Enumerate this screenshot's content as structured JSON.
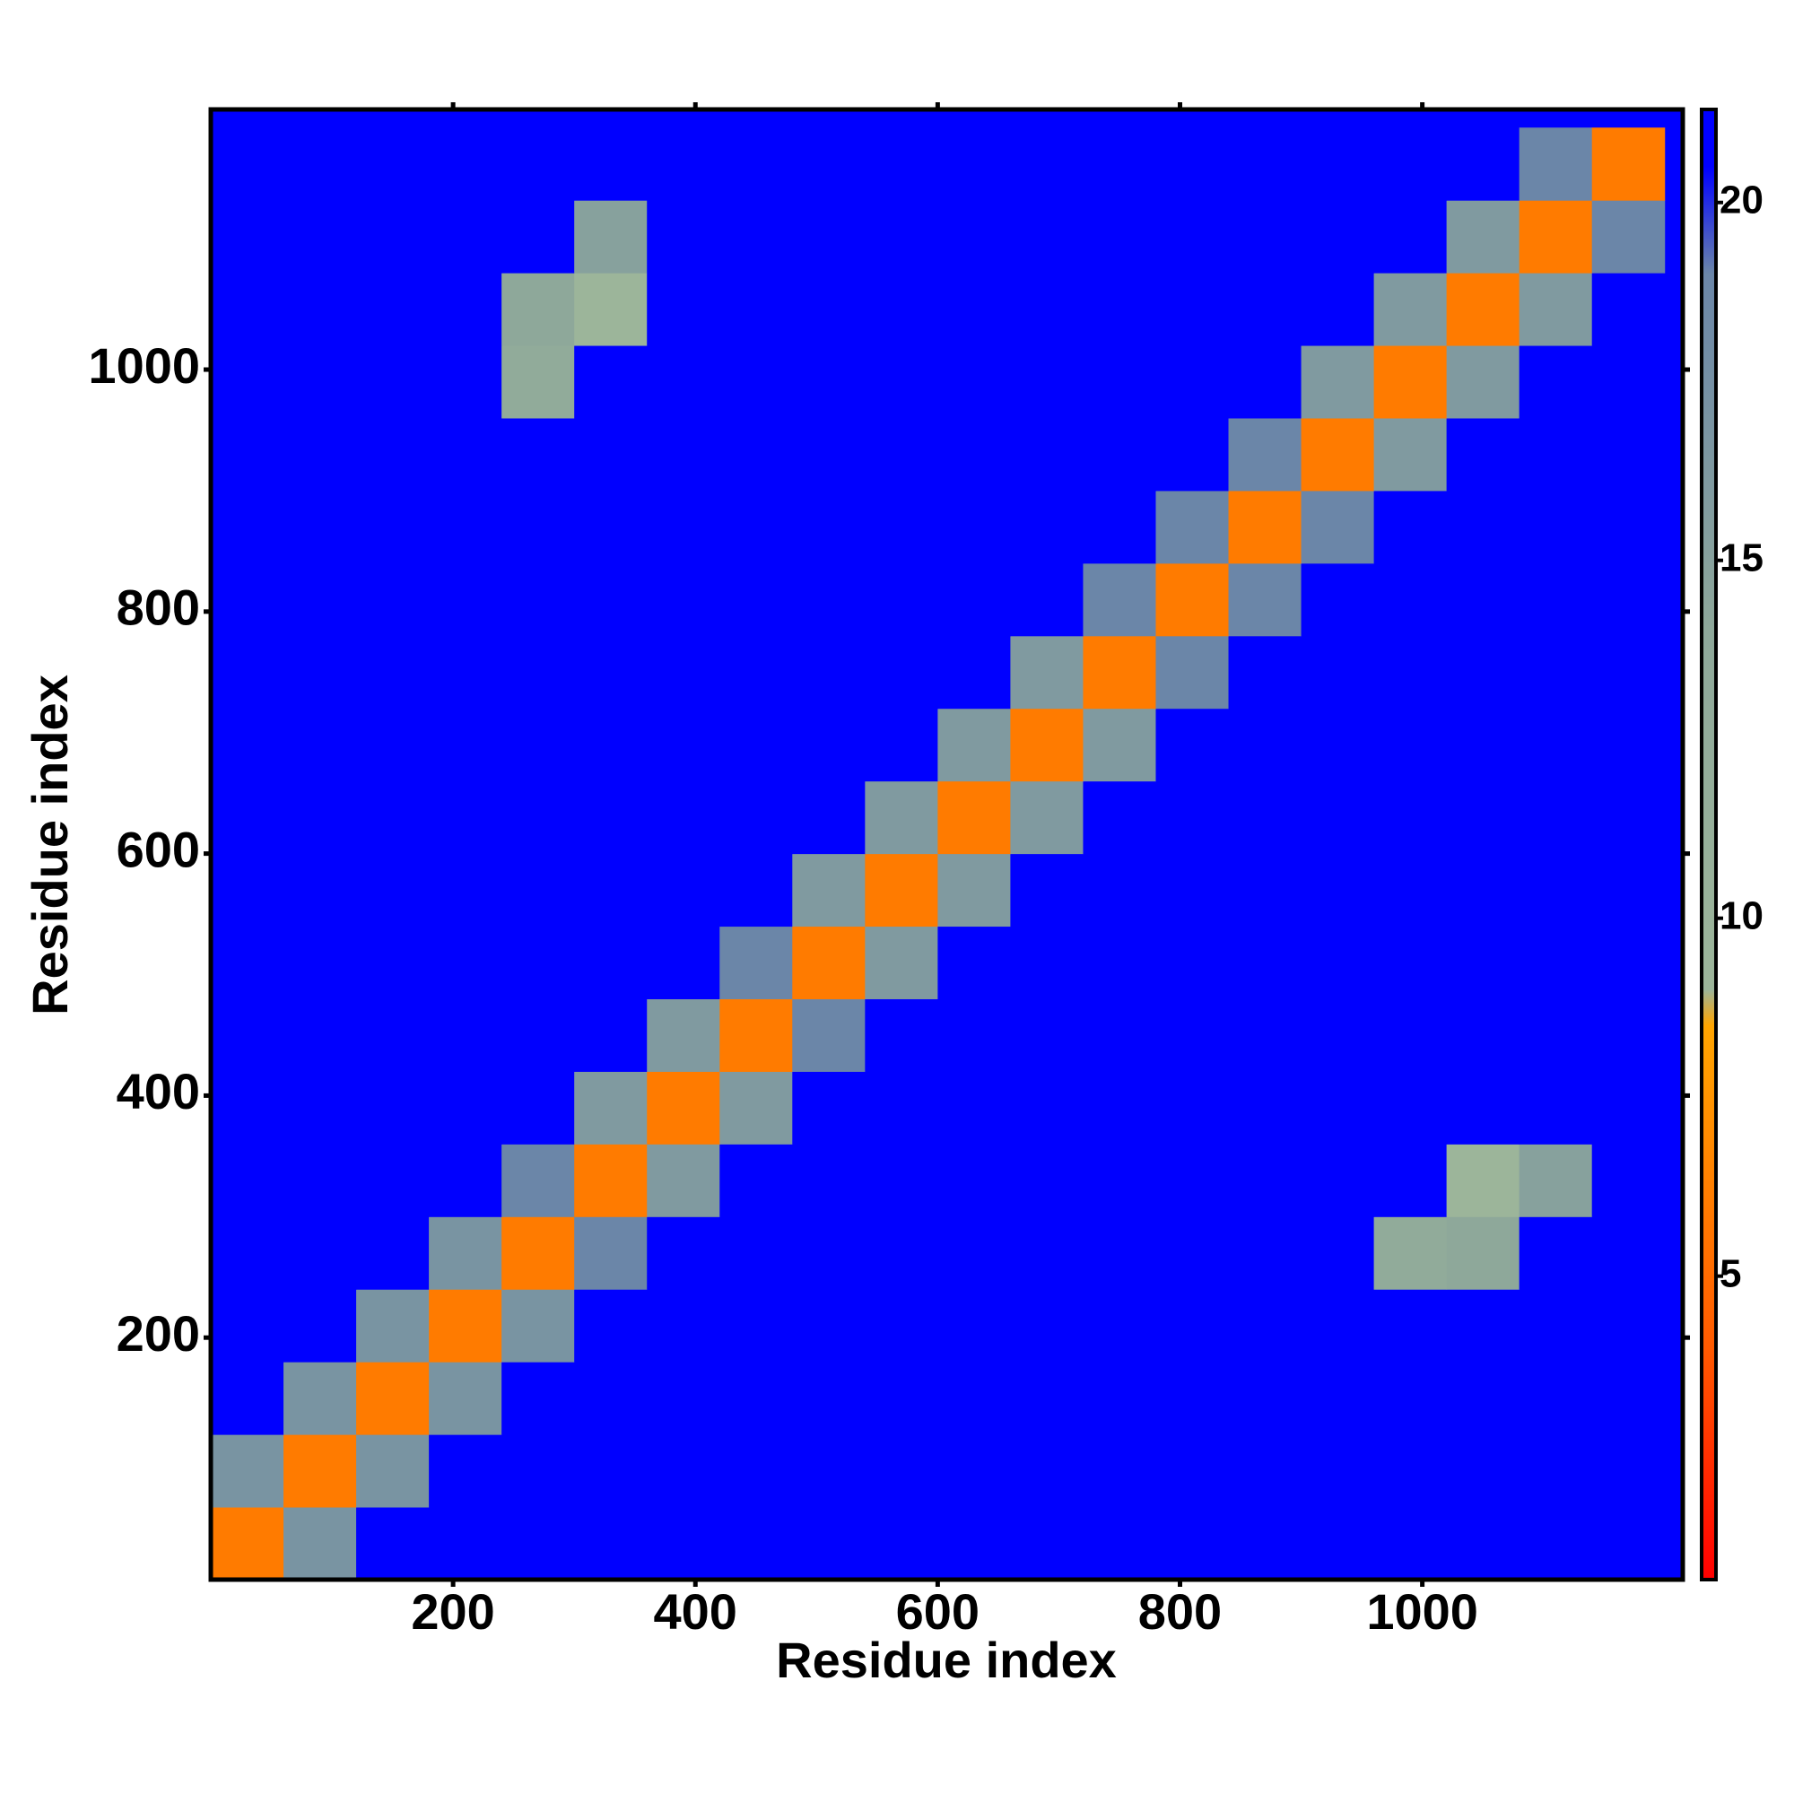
{
  "chart_data": {
    "type": "heatmap",
    "x_label": "Residue index",
    "y_label": "Residue index",
    "bins": [
      0,
      60,
      120,
      180,
      240,
      300,
      360,
      420,
      480,
      540,
      600,
      660,
      720,
      780,
      840,
      900,
      960,
      1020,
      1080,
      1140,
      1200
    ],
    "values": [
      [
        6,
        17,
        21,
        21,
        21,
        21,
        21,
        21,
        21,
        21,
        21,
        21,
        21,
        21,
        21,
        21,
        21,
        21,
        21,
        21
      ],
      [
        17,
        6,
        17,
        21,
        21,
        21,
        21,
        21,
        21,
        21,
        21,
        21,
        21,
        21,
        21,
        21,
        21,
        21,
        21,
        21
      ],
      [
        21,
        17,
        6,
        17,
        21,
        21,
        21,
        21,
        21,
        21,
        21,
        21,
        21,
        21,
        21,
        21,
        21,
        21,
        21,
        21
      ],
      [
        21,
        21,
        17,
        6,
        17,
        21,
        21,
        21,
        21,
        21,
        21,
        21,
        21,
        21,
        21,
        21,
        21,
        21,
        21,
        21
      ],
      [
        21,
        21,
        21,
        17,
        6,
        19,
        21,
        21,
        21,
        21,
        21,
        21,
        21,
        21,
        21,
        21,
        13,
        14,
        21,
        21
      ],
      [
        21,
        21,
        21,
        21,
        19,
        6,
        16,
        21,
        21,
        21,
        21,
        21,
        21,
        21,
        21,
        21,
        21,
        9,
        15,
        21
      ],
      [
        21,
        21,
        21,
        21,
        21,
        16,
        6,
        16,
        21,
        21,
        21,
        21,
        21,
        21,
        21,
        21,
        21,
        21,
        21,
        21
      ],
      [
        21,
        21,
        21,
        21,
        21,
        21,
        16,
        6,
        19,
        21,
        21,
        21,
        21,
        21,
        21,
        21,
        21,
        21,
        21,
        21
      ],
      [
        21,
        21,
        21,
        21,
        21,
        21,
        21,
        19,
        6,
        16,
        21,
        21,
        21,
        21,
        21,
        21,
        21,
        21,
        21,
        21
      ],
      [
        21,
        21,
        21,
        21,
        21,
        21,
        21,
        21,
        16,
        6,
        16,
        21,
        21,
        21,
        21,
        21,
        21,
        21,
        21,
        21
      ],
      [
        21,
        21,
        21,
        21,
        21,
        21,
        21,
        21,
        21,
        16,
        6,
        16,
        21,
        21,
        21,
        21,
        21,
        21,
        21,
        21
      ],
      [
        21,
        21,
        21,
        21,
        21,
        21,
        21,
        21,
        21,
        21,
        16,
        6,
        16,
        21,
        21,
        21,
        21,
        21,
        21,
        21
      ],
      [
        21,
        21,
        21,
        21,
        21,
        21,
        21,
        21,
        21,
        21,
        21,
        16,
        6,
        19,
        21,
        21,
        21,
        21,
        21,
        21
      ],
      [
        21,
        21,
        21,
        21,
        21,
        21,
        21,
        21,
        21,
        21,
        21,
        21,
        19,
        6,
        19,
        21,
        21,
        21,
        21,
        21
      ],
      [
        21,
        21,
        21,
        21,
        21,
        21,
        21,
        21,
        21,
        21,
        21,
        21,
        21,
        19,
        6,
        19,
        21,
        21,
        21,
        21
      ],
      [
        21,
        21,
        21,
        21,
        21,
        21,
        21,
        21,
        21,
        21,
        21,
        21,
        21,
        21,
        19,
        6,
        16,
        21,
        21,
        21
      ],
      [
        21,
        21,
        21,
        21,
        13,
        21,
        21,
        21,
        21,
        21,
        21,
        21,
        21,
        21,
        21,
        16,
        6,
        16,
        21,
        21
      ],
      [
        21,
        21,
        21,
        21,
        14,
        9,
        21,
        21,
        21,
        21,
        21,
        21,
        21,
        21,
        21,
        21,
        16,
        6,
        16,
        21
      ],
      [
        21,
        21,
        21,
        21,
        21,
        15,
        21,
        21,
        21,
        21,
        21,
        21,
        21,
        21,
        21,
        21,
        21,
        16,
        6,
        19
      ],
      [
        21,
        21,
        21,
        21,
        21,
        21,
        21,
        21,
        21,
        21,
        21,
        21,
        21,
        21,
        21,
        21,
        21,
        21,
        19,
        6
      ]
    ],
    "xlim": [
      0,
      1215
    ],
    "ylim": [
      0,
      1215
    ],
    "xticks": [
      200,
      400,
      600,
      800,
      1000
    ],
    "yticks": [
      200,
      400,
      600,
      800,
      1000
    ],
    "clim": [
      0.76,
      21.3
    ],
    "cticks": [
      5,
      10,
      15,
      20
    ],
    "colorscale": [
      {
        "value": 0.76,
        "color": "#ff0000"
      },
      {
        "value": 4,
        "color": "#ff5a00"
      },
      {
        "value": 8.5,
        "color": "#ffa500"
      },
      {
        "value": 9,
        "color": "#9cb59a"
      },
      {
        "value": 14,
        "color": "#8ea89a"
      },
      {
        "value": 19,
        "color": "#6b86a8"
      },
      {
        "value": 20.5,
        "color": "#0000ff"
      }
    ],
    "background": "#0000ff"
  }
}
